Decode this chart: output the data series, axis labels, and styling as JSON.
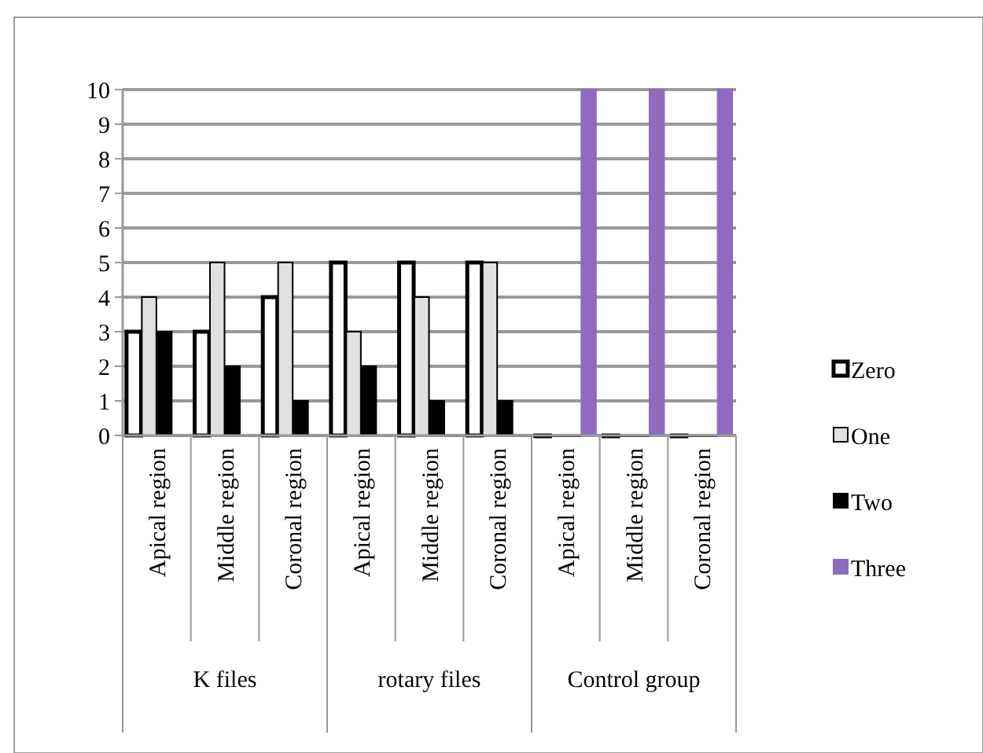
{
  "chart_data": {
    "type": "bar",
    "categories": [
      "Apical region",
      "Middle region",
      "Coronal region",
      "Apical region",
      "Middle region",
      "Coronal region",
      "Apical region",
      "Middle region",
      "Coronal region"
    ],
    "series": [
      {
        "name": "Zero",
        "color": "#ffffff",
        "values": [
          3,
          3,
          4,
          5,
          5,
          5,
          0,
          0,
          0
        ]
      },
      {
        "name": "One",
        "color": "#e0e0e0",
        "values": [
          4,
          5,
          5,
          3,
          4,
          5,
          0,
          0,
          0
        ]
      },
      {
        "name": "Two",
        "color": "#000000",
        "values": [
          3,
          2,
          1,
          2,
          1,
          1,
          0,
          0,
          0
        ]
      },
      {
        "name": "Three",
        "color": "#8e6bbf",
        "values": [
          0,
          0,
          0,
          0,
          0,
          0,
          10,
          10,
          10
        ]
      }
    ],
    "annotations": [
      "K files",
      "rotary files",
      "Control group"
    ],
    "ylim": [
      0,
      10
    ],
    "yticks": [
      0,
      1,
      2,
      3,
      4,
      5,
      6,
      7,
      8,
      9,
      10
    ],
    "grid": "y",
    "legend": "right"
  }
}
